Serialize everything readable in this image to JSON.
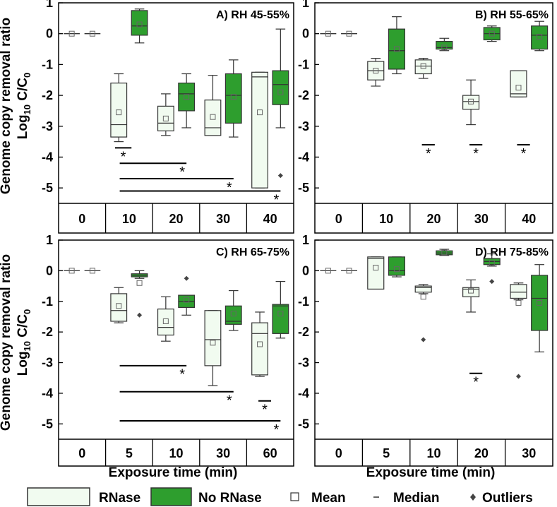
{
  "figure": {
    "ylabel_line1": "Genome copy removal ratio",
    "ylabel_line2_base": "Log",
    "ylabel_line2_sub": "10",
    "ylabel_line2_mid": " C/C",
    "ylabel_line2_sub2": "0",
    "xlabel": "Exposure time (min)",
    "significance_symbol": "*"
  },
  "legend": {
    "rnase": "RNase",
    "no_rnase": "No RNase",
    "mean": "Mean",
    "median": "Median",
    "outliers": "Outliers",
    "colors": {
      "rnase_fill": "#f1fbf0",
      "no_rnase_fill": "#2e9e2e",
      "edge": "#333333",
      "outlier": "#444444"
    }
  },
  "chart_data": [
    {
      "type": "box",
      "title": "A) RH 45-55%",
      "xlabel": "Exposure time (min)",
      "ylabel": "Log10 C/C0",
      "ylim": [
        -5.5,
        1
      ],
      "yticks": [
        1,
        0,
        -1,
        -2,
        -3,
        -4,
        -5
      ],
      "categories": [
        "0",
        "10",
        "20",
        "30",
        "40"
      ],
      "series": [
        {
          "name": "RNase",
          "boxes": [
            {
              "cat": "0",
              "min": 0,
              "q1": 0,
              "median": 0,
              "q3": 0,
              "max": 0,
              "mean": 0,
              "outliers": []
            },
            {
              "cat": "10",
              "min": -3.5,
              "q1": -3.35,
              "median": -2.95,
              "q3": -1.6,
              "max": -1.3,
              "mean": -2.55,
              "outliers": []
            },
            {
              "cat": "20",
              "min": -3.3,
              "q1": -3.15,
              "median": -2.9,
              "q3": -2.35,
              "max": -1.95,
              "mean": -2.75,
              "outliers": []
            },
            {
              "cat": "30",
              "min": -3.3,
              "q1": -3.3,
              "median": -3.05,
              "q3": -2.15,
              "max": -1.35,
              "mean": -2.7,
              "outliers": []
            },
            {
              "cat": "40",
              "min": -5.0,
              "q1": -5.0,
              "median": -1.4,
              "q3": -1.25,
              "max": -1.25,
              "mean": -2.55,
              "outliers": []
            }
          ]
        },
        {
          "name": "No RNase",
          "boxes": [
            {
              "cat": "0",
              "min": 0,
              "q1": 0,
              "median": 0,
              "q3": 0,
              "max": 0,
              "mean": 0,
              "outliers": []
            },
            {
              "cat": "10",
              "min": -0.3,
              "q1": -0.05,
              "median": 0.25,
              "q3": 0.75,
              "max": 0.8,
              "mean": 0.3,
              "outliers": []
            },
            {
              "cat": "20",
              "min": -3.05,
              "q1": -2.5,
              "median": -1.95,
              "q3": -1.6,
              "max": -1.3,
              "mean": -2.05,
              "outliers": []
            },
            {
              "cat": "30",
              "min": -3.35,
              "q1": -2.9,
              "median": -2.0,
              "q3": -1.3,
              "max": -0.85,
              "mean": -2.05,
              "outliers": []
            },
            {
              "cat": "40",
              "min": -3.05,
              "q1": -2.3,
              "median": -1.65,
              "q3": -1.2,
              "max": 0.15,
              "mean": -1.9,
              "outliers": [
                -4.6
              ]
            }
          ]
        }
      ],
      "significance": [
        {
          "from": "10",
          "to": "10",
          "y": -3.7,
          "star_y": -3.95,
          "label": "*"
        },
        {
          "from": "10",
          "to": "20",
          "y": -4.2,
          "star_y": -4.45,
          "label": "*"
        },
        {
          "from": "10",
          "to": "30",
          "y": -4.7,
          "star_y": -4.95,
          "label": "*"
        },
        {
          "from": "10",
          "to": "40",
          "y": -5.1,
          "star_y": -5.35,
          "label": "*"
        }
      ]
    },
    {
      "type": "box",
      "title": "B) RH 55-65%",
      "xlabel": "Exposure time (min)",
      "ylabel": "Log10 C/C0",
      "ylim": [
        -5.5,
        1
      ],
      "yticks": [
        1,
        0,
        -1,
        -2,
        -3,
        -4,
        -5
      ],
      "categories": [
        "0",
        "10",
        "20",
        "30",
        "40"
      ],
      "series": [
        {
          "name": "RNase",
          "boxes": [
            {
              "cat": "0",
              "min": 0,
              "q1": 0,
              "median": 0,
              "q3": 0,
              "max": 0,
              "mean": 0,
              "outliers": []
            },
            {
              "cat": "10",
              "min": -1.7,
              "q1": -1.5,
              "median": -1.2,
              "q3": -0.9,
              "max": -0.8,
              "mean": -1.2,
              "outliers": []
            },
            {
              "cat": "20",
              "min": -1.45,
              "q1": -1.3,
              "median": -1.05,
              "q3": -0.85,
              "max": -0.8,
              "mean": -1.05,
              "outliers": []
            },
            {
              "cat": "30",
              "min": -2.95,
              "q1": -2.45,
              "median": -2.2,
              "q3": -2.0,
              "max": -1.5,
              "mean": -2.2,
              "outliers": []
            },
            {
              "cat": "40",
              "min": -2.05,
              "q1": -2.05,
              "median": -1.95,
              "q3": -1.2,
              "max": -1.2,
              "mean": -1.75,
              "outliers": []
            }
          ]
        },
        {
          "name": "No RNase",
          "boxes": [
            {
              "cat": "0",
              "min": 0,
              "q1": 0,
              "median": 0,
              "q3": 0,
              "max": 0,
              "mean": 0,
              "outliers": []
            },
            {
              "cat": "10",
              "min": -1.3,
              "q1": -1.15,
              "median": -0.55,
              "q3": 0.15,
              "max": 0.55,
              "mean": -0.5,
              "outliers": []
            },
            {
              "cat": "20",
              "min": -0.55,
              "q1": -0.5,
              "median": -0.45,
              "q3": -0.25,
              "max": -0.15,
              "mean": -0.45,
              "outliers": []
            },
            {
              "cat": "30",
              "min": -0.25,
              "q1": -0.2,
              "median": 0.0,
              "q3": 0.2,
              "max": 0.25,
              "mean": 0.0,
              "outliers": []
            },
            {
              "cat": "40",
              "min": -0.55,
              "q1": -0.5,
              "median": -0.05,
              "q3": 0.25,
              "max": 0.4,
              "mean": -0.1,
              "outliers": []
            }
          ]
        }
      ],
      "significance": [
        {
          "from": "20",
          "to": "20",
          "y": -3.6,
          "star_y": -3.85,
          "label": "*"
        },
        {
          "from": "30",
          "to": "30",
          "y": -3.6,
          "star_y": -3.85,
          "label": "*"
        },
        {
          "from": "40",
          "to": "40",
          "y": -3.6,
          "star_y": -3.85,
          "label": "*"
        }
      ]
    },
    {
      "type": "box",
      "title": "C) RH 65-75%",
      "xlabel": "Exposure time (min)",
      "ylabel": "Log10 C/C0",
      "ylim": [
        -5.5,
        1
      ],
      "yticks": [
        1,
        0,
        -1,
        -2,
        -3,
        -4,
        -5
      ],
      "categories": [
        "0",
        "5",
        "10",
        "30",
        "60"
      ],
      "series": [
        {
          "name": "RNase",
          "boxes": [
            {
              "cat": "0",
              "min": 0,
              "q1": 0,
              "median": 0,
              "q3": 0,
              "max": 0,
              "mean": 0,
              "outliers": []
            },
            {
              "cat": "5",
              "min": -1.7,
              "q1": -1.65,
              "median": -1.3,
              "q3": -0.75,
              "max": -0.55,
              "mean": -1.15,
              "outliers": []
            },
            {
              "cat": "10",
              "min": -2.3,
              "q1": -2.1,
              "median": -1.85,
              "q3": -1.25,
              "max": -0.85,
              "mean": -1.65,
              "outliers": []
            },
            {
              "cat": "30",
              "min": -3.75,
              "q1": -3.1,
              "median": -2.25,
              "q3": -1.3,
              "max": -1.3,
              "mean": -2.35,
              "outliers": []
            },
            {
              "cat": "60",
              "min": -3.45,
              "q1": -3.4,
              "median": -2.05,
              "q3": -1.7,
              "max": -1.35,
              "mean": -2.4,
              "outliers": []
            }
          ]
        },
        {
          "name": "No RNase",
          "boxes": [
            {
              "cat": "0",
              "min": 0,
              "q1": 0,
              "median": 0,
              "q3": 0,
              "max": 0,
              "mean": 0,
              "outliers": []
            },
            {
              "cat": "5",
              "min": -0.25,
              "q1": -0.2,
              "median": -0.15,
              "q3": -0.1,
              "max": 0.0,
              "mean": -0.4,
              "outliers": [
                -1.45
              ]
            },
            {
              "cat": "10",
              "min": -1.45,
              "q1": -1.2,
              "median": -1.0,
              "q3": -0.8,
              "max": -0.8,
              "mean": -0.95,
              "outliers": [
                -0.25
              ]
            },
            {
              "cat": "30",
              "min": -1.95,
              "q1": -1.75,
              "median": -1.65,
              "q3": -1.15,
              "max": -0.65,
              "mean": -1.4,
              "outliers": []
            },
            {
              "cat": "60",
              "min": -2.2,
              "q1": -2.05,
              "median": -1.15,
              "q3": -1.1,
              "max": -0.35,
              "mean": -1.4,
              "outliers": []
            }
          ]
        }
      ],
      "significance": [
        {
          "from": "5",
          "to": "10",
          "y": -3.1,
          "star_y": -3.35,
          "label": "*"
        },
        {
          "from": "5",
          "to": "30",
          "y": -3.95,
          "star_y": -4.2,
          "label": "*"
        },
        {
          "from": "60",
          "to": "60",
          "y": -4.25,
          "star_y": -4.5,
          "label": "*"
        },
        {
          "from": "5",
          "to": "60",
          "y": -4.9,
          "star_y": -5.15,
          "label": "*"
        }
      ]
    },
    {
      "type": "box",
      "title": "D) RH 75-85%",
      "xlabel": "Exposure time (min)",
      "ylabel": "Log10 C/C0",
      "ylim": [
        -5.5,
        1
      ],
      "yticks": [
        1,
        0,
        -1,
        -2,
        -3,
        -4,
        -5
      ],
      "categories": [
        "0",
        "5",
        "10",
        "20",
        "30"
      ],
      "series": [
        {
          "name": "RNase",
          "boxes": [
            {
              "cat": "0",
              "min": 0,
              "q1": 0,
              "median": 0,
              "q3": 0,
              "max": 0,
              "mean": 0,
              "outliers": []
            },
            {
              "cat": "5",
              "min": -0.6,
              "q1": -0.6,
              "median": 0.4,
              "q3": 0.45,
              "max": 0.45,
              "mean": 0.1,
              "outliers": []
            },
            {
              "cat": "10",
              "min": -0.75,
              "q1": -0.7,
              "median": -0.55,
              "q3": -0.5,
              "max": -0.45,
              "mean": -0.85,
              "outliers": [
                -2.25
              ]
            },
            {
              "cat": "20",
              "min": -1.35,
              "q1": -0.85,
              "median": -0.6,
              "q3": -0.55,
              "max": -0.3,
              "mean": -0.65,
              "outliers": []
            },
            {
              "cat": "30",
              "min": -0.95,
              "q1": -0.9,
              "median": -0.7,
              "q3": -0.45,
              "max": -0.4,
              "mean": -1.05,
              "outliers": [
                -3.45
              ]
            }
          ]
        },
        {
          "name": "No RNase",
          "boxes": [
            {
              "cat": "0",
              "min": 0,
              "q1": 0,
              "median": 0,
              "q3": 0,
              "max": 0,
              "mean": 0,
              "outliers": []
            },
            {
              "cat": "5",
              "min": -0.2,
              "q1": -0.15,
              "median": 0.0,
              "q3": 0.45,
              "max": 0.45,
              "mean": 0.05,
              "outliers": []
            },
            {
              "cat": "10",
              "min": 0.5,
              "q1": 0.52,
              "median": 0.58,
              "q3": 0.65,
              "max": 0.7,
              "mean": 0.6,
              "outliers": []
            },
            {
              "cat": "20",
              "min": 0.15,
              "q1": 0.2,
              "median": 0.3,
              "q3": 0.4,
              "max": 0.55,
              "mean": 0.25,
              "outliers": [
                -0.35
              ]
            },
            {
              "cat": "30",
              "min": -2.65,
              "q1": -1.95,
              "median": -0.9,
              "q3": -0.15,
              "max": 0.2,
              "mean": -1.05,
              "outliers": []
            }
          ]
        }
      ],
      "significance": [
        {
          "from": "20",
          "to": "20",
          "y": -3.35,
          "star_y": -3.6,
          "label": "*"
        }
      ]
    }
  ]
}
